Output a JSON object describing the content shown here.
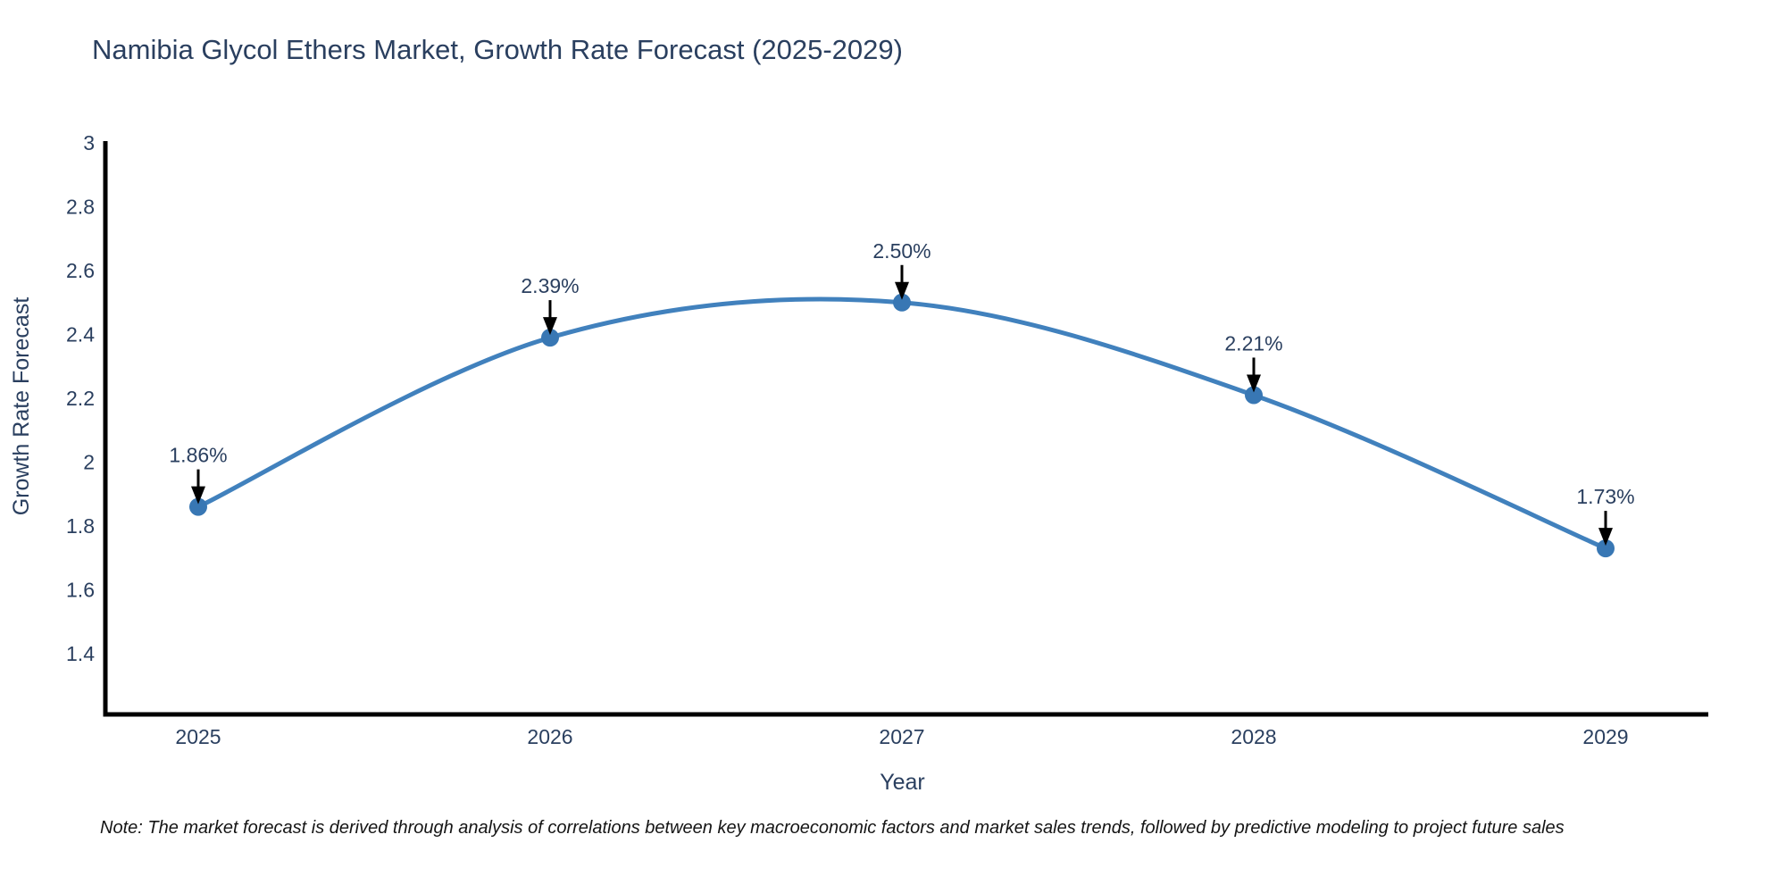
{
  "chart": {
    "title": "Namibia Glycol Ethers Market, Growth Rate Forecast (2025-2029)",
    "note": "Note: The market forecast is derived through analysis of correlations between key macroeconomic factors and market sales trends, followed by predictive modeling to project future sales",
    "colors": {
      "line": "#4181bd",
      "marker": "#3877b4",
      "text": "#2a3f5f",
      "axis": "#000000",
      "annotation": "#2a3f5f",
      "arrow": "#000000",
      "note_text": "#151515",
      "background": "#ffffff"
    }
  },
  "chart_data": {
    "type": "line",
    "title": "Namibia Glycol Ethers Market, Growth Rate Forecast (2025-2029)",
    "xlabel": "Year",
    "ylabel": "Growth Rate Forecast",
    "x": [
      2025,
      2026,
      2027,
      2028,
      2029
    ],
    "series": [
      {
        "name": "Growth Rate Forecast",
        "values": [
          1.86,
          2.39,
          2.5,
          2.21,
          1.73
        ],
        "point_labels": [
          "1.86%",
          "2.39%",
          "2.50%",
          "2.21%",
          "1.73%"
        ]
      }
    ],
    "ylim": [
      1.21,
      3.0
    ],
    "yticks": [
      1.4,
      1.6,
      1.8,
      2,
      2.2,
      2.4,
      2.6,
      2.8,
      3
    ],
    "xticks": [
      "2025",
      "2026",
      "2027",
      "2028",
      "2029"
    ],
    "grid": false,
    "legend": false,
    "line_shape": "spline",
    "markers": true,
    "annotation_style": "value-label-with-down-arrow"
  }
}
